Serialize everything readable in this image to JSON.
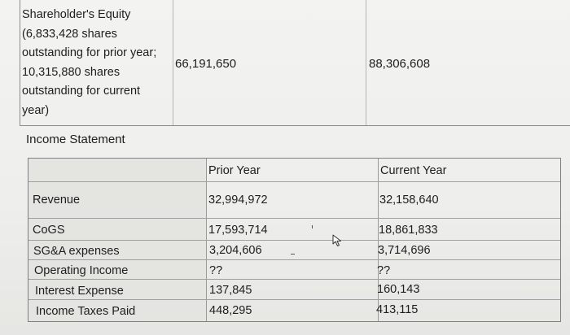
{
  "equity": {
    "label_lines": [
      "Shareholder's Equity",
      "(6,833,428 shares",
      "outstanding for prior year;",
      "10,315,880 shares",
      "outstanding for current",
      "year)"
    ],
    "prior_value": "66,191,650",
    "current_value": "88,306,608"
  },
  "income_statement": {
    "title": "Income Statement",
    "headers": {
      "label": "",
      "prior": "Prior Year",
      "current": "Current Year"
    },
    "revenue": {
      "label": "Revenue",
      "prior": "32,994,972",
      "current": "32,158,640"
    },
    "rows": [
      {
        "label": "CoGS",
        "prior": "17,593,714",
        "current": "18,861,833"
      },
      {
        "label": "SG&A expenses",
        "prior": "3,204,606",
        "current": "3,714,696"
      },
      {
        "label": "Operating Income",
        "prior": "??",
        "current": "??"
      },
      {
        "label": "Interest Expense",
        "prior": "137,845",
        "current": "160,143"
      },
      {
        "label": "Income Taxes Paid",
        "prior": "448,295",
        "current": "413,115"
      }
    ]
  }
}
